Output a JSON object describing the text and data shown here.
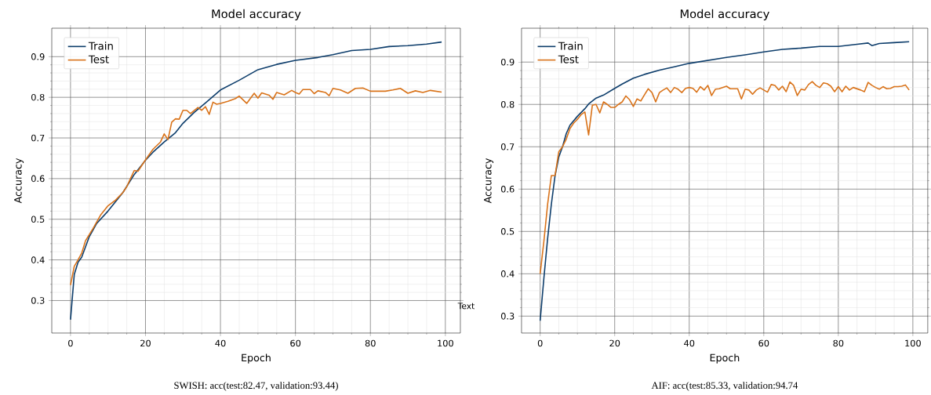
{
  "chart_data": [
    {
      "type": "line",
      "title": "Model accuracy",
      "xlabel": "Epoch",
      "ylabel": "Accuracy",
      "xlim": [
        -5,
        104
      ],
      "ylim": [
        0.22,
        0.97
      ],
      "xticks": [
        0,
        20,
        40,
        60,
        80,
        100
      ],
      "yticks": [
        0.3,
        0.4,
        0.5,
        0.6,
        0.7,
        0.8,
        0.9
      ],
      "grid": true,
      "legend": "top left",
      "annotations": [
        "SWISH: acc(test:82.47, validation:93.44)",
        "Text"
      ],
      "series": [
        {
          "name": "Train",
          "color": "#0d3d6b",
          "x": [
            0,
            1,
            2,
            3,
            5,
            7,
            10,
            14,
            17,
            20,
            22,
            25,
            28,
            30,
            33,
            36,
            40,
            45,
            50,
            55,
            60,
            66,
            70,
            75,
            80,
            85,
            90,
            95,
            99
          ],
          "values": [
            0.253,
            0.364,
            0.394,
            0.407,
            0.457,
            0.49,
            0.52,
            0.566,
            0.61,
            0.645,
            0.665,
            0.69,
            0.713,
            0.736,
            0.763,
            0.786,
            0.818,
            0.842,
            0.868,
            0.881,
            0.891,
            0.898,
            0.905,
            0.915,
            0.918,
            0.925,
            0.927,
            0.931,
            0.936
          ]
        },
        {
          "name": "Test",
          "color": "#d9731a",
          "x": [
            0,
            1,
            2,
            3,
            4,
            6,
            8,
            10,
            12,
            14,
            15,
            16,
            17,
            18,
            20,
            22,
            24,
            25,
            26,
            27,
            28,
            29,
            30,
            31,
            32,
            34,
            35,
            36,
            37,
            38,
            39,
            40,
            42,
            44,
            45,
            47,
            49,
            50,
            51,
            53,
            54,
            55,
            57,
            59,
            60,
            61,
            62,
            64,
            65,
            66,
            68,
            69,
            70,
            72,
            74,
            76,
            78,
            80,
            84,
            86,
            88,
            90,
            92,
            94,
            96,
            99
          ],
          "values": [
            0.338,
            0.384,
            0.4,
            0.417,
            0.447,
            0.477,
            0.51,
            0.533,
            0.547,
            0.566,
            0.58,
            0.6,
            0.62,
            0.618,
            0.646,
            0.672,
            0.69,
            0.71,
            0.696,
            0.739,
            0.747,
            0.746,
            0.768,
            0.768,
            0.76,
            0.775,
            0.768,
            0.777,
            0.758,
            0.788,
            0.783,
            0.785,
            0.79,
            0.797,
            0.803,
            0.785,
            0.81,
            0.798,
            0.811,
            0.805,
            0.795,
            0.812,
            0.806,
            0.817,
            0.812,
            0.808,
            0.819,
            0.819,
            0.809,
            0.816,
            0.812,
            0.804,
            0.822,
            0.818,
            0.81,
            0.822,
            0.823,
            0.815,
            0.815,
            0.818,
            0.822,
            0.81,
            0.816,
            0.812,
            0.817,
            0.813
          ]
        }
      ]
    },
    {
      "type": "line",
      "title": "Model accuracy",
      "xlabel": "Epoch",
      "ylabel": "Accuracy",
      "xlim": [
        -5,
        104
      ],
      "ylim": [
        0.26,
        0.98
      ],
      "xticks": [
        0,
        20,
        40,
        60,
        80,
        100
      ],
      "yticks": [
        0.3,
        0.4,
        0.5,
        0.6,
        0.7,
        0.8,
        0.9
      ],
      "grid": true,
      "legend": "top left",
      "annotations": [
        "AIF: acc(test:85.33, validation:94.74"
      ],
      "series": [
        {
          "name": "Train",
          "color": "#0d3d6b",
          "x": [
            0,
            1,
            2,
            3,
            4,
            5,
            6,
            7,
            8,
            10,
            12,
            13,
            15,
            17,
            20,
            22,
            25,
            28,
            32,
            36,
            40,
            45,
            50,
            55,
            60,
            65,
            70,
            75,
            80,
            85,
            88,
            89,
            91,
            95,
            99
          ],
          "values": [
            0.289,
            0.39,
            0.483,
            0.564,
            0.632,
            0.676,
            0.7,
            0.731,
            0.751,
            0.772,
            0.79,
            0.801,
            0.815,
            0.822,
            0.838,
            0.848,
            0.862,
            0.871,
            0.881,
            0.889,
            0.897,
            0.904,
            0.911,
            0.917,
            0.924,
            0.93,
            0.933,
            0.937,
            0.937,
            0.942,
            0.945,
            0.939,
            0.944,
            0.946,
            0.948
          ]
        },
        {
          "name": "Test",
          "color": "#d9731a",
          "x": [
            0,
            1,
            2,
            3,
            4,
            5,
            6,
            7,
            8,
            9,
            10,
            11,
            12,
            13,
            14,
            15,
            16,
            17,
            18,
            19,
            20,
            21,
            22,
            23,
            24,
            25,
            26,
            27,
            28,
            29,
            30,
            31,
            32,
            33,
            34,
            35,
            36,
            37,
            38,
            39,
            40,
            41,
            42,
            43,
            44,
            45,
            46,
            47,
            48,
            49,
            50,
            51,
            52,
            53,
            54,
            55,
            56,
            57,
            58,
            59,
            60,
            61,
            62,
            63,
            64,
            65,
            66,
            67,
            68,
            69,
            70,
            71,
            72,
            73,
            74,
            75,
            76,
            77,
            78,
            79,
            80,
            81,
            82,
            83,
            84,
            85,
            86,
            87,
            88,
            89,
            90,
            91,
            92,
            93,
            94,
            95,
            96,
            97,
            98,
            99
          ],
          "values": [
            0.4,
            0.477,
            0.564,
            0.632,
            0.632,
            0.688,
            0.7,
            0.718,
            0.743,
            0.756,
            0.765,
            0.776,
            0.782,
            0.728,
            0.798,
            0.8,
            0.78,
            0.806,
            0.8,
            0.793,
            0.793,
            0.8,
            0.806,
            0.82,
            0.811,
            0.795,
            0.813,
            0.808,
            0.823,
            0.837,
            0.828,
            0.806,
            0.828,
            0.834,
            0.839,
            0.828,
            0.84,
            0.836,
            0.828,
            0.838,
            0.84,
            0.838,
            0.829,
            0.842,
            0.834,
            0.845,
            0.821,
            0.836,
            0.837,
            0.84,
            0.843,
            0.837,
            0.837,
            0.837,
            0.813,
            0.836,
            0.834,
            0.824,
            0.834,
            0.839,
            0.834,
            0.829,
            0.847,
            0.845,
            0.834,
            0.843,
            0.83,
            0.853,
            0.845,
            0.821,
            0.836,
            0.834,
            0.847,
            0.854,
            0.845,
            0.84,
            0.851,
            0.849,
            0.843,
            0.83,
            0.842,
            0.83,
            0.843,
            0.834,
            0.84,
            0.837,
            0.834,
            0.83,
            0.852,
            0.845,
            0.84,
            0.836,
            0.842,
            0.837,
            0.838,
            0.842,
            0.842,
            0.843,
            0.846,
            0.834
          ]
        }
      ]
    }
  ]
}
